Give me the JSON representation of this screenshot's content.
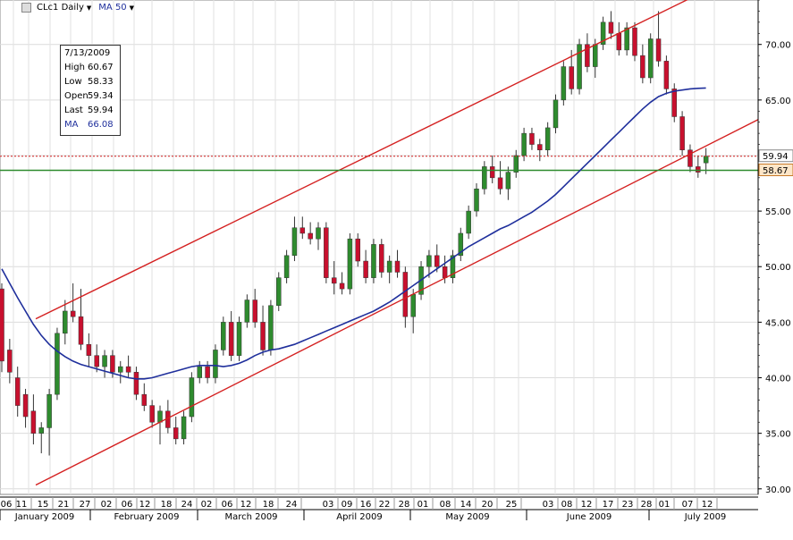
{
  "toolbar": {
    "symbol": "CLc1 Daily",
    "study": "MA 50"
  },
  "tooltip": {
    "date": "7/13/2009",
    "high_label": "High",
    "high": "60.67",
    "low_label": "Low",
    "low": "58.33",
    "open_label": "Open",
    "open": "59.34",
    "last_label": "Last",
    "last": "59.94",
    "ma_label": "MA",
    "ma": "66.08"
  },
  "colors": {
    "up": "#2e8b2e",
    "down": "#c8102e",
    "ma": "#1f2f9c",
    "channel": "#d42020",
    "support": "#2e8b2e",
    "last_line": "#d42020"
  },
  "price_labels": {
    "last": "59.94",
    "support": "58.67"
  },
  "chart_data": {
    "type": "candlestick",
    "title": "",
    "instrument": "CLc1",
    "interval": "Daily",
    "y_range": [
      29.5,
      74
    ],
    "y_ticks": [
      "30.00",
      "35.00",
      "40.00",
      "45.00",
      "50.00",
      "55.00",
      "60.00",
      "65.00",
      "70.00"
    ],
    "x_day_ticks": [
      "06",
      "11",
      "15",
      "21",
      "27",
      "02",
      "06",
      "12",
      "18",
      "24",
      "02",
      "06",
      "12",
      "18",
      "24",
      "03",
      "09",
      "16",
      "22",
      "28",
      "01",
      "08",
      "14",
      "20",
      "25",
      "03",
      "08",
      "12",
      "17",
      "23",
      "28",
      "01",
      "07",
      "12"
    ],
    "x_month_labels": [
      "January 2009",
      "February 2009",
      "March 2009",
      "April 2009",
      "May 2009",
      "June 2009",
      "July 2009"
    ],
    "moving_average": {
      "name": "MA 50",
      "values": [
        49.8,
        48.5,
        47.2,
        46.0,
        44.8,
        43.8,
        43.0,
        42.4,
        41.9,
        41.5,
        41.2,
        41.0,
        40.8,
        40.6,
        40.4,
        40.2,
        40.0,
        39.9,
        39.9,
        40.0,
        40.2,
        40.4,
        40.6,
        40.8,
        41.0,
        41.1,
        41.1,
        41.1,
        41.0,
        41.1,
        41.3,
        41.6,
        42.0,
        42.3,
        42.5,
        42.6,
        42.8,
        43.0,
        43.3,
        43.6,
        43.9,
        44.2,
        44.5,
        44.8,
        45.1,
        45.4,
        45.7,
        46.0,
        46.4,
        46.8,
        47.3,
        47.8,
        48.3,
        48.8,
        49.3,
        49.8,
        50.3,
        50.8,
        51.3,
        51.8,
        52.2,
        52.6,
        53.0,
        53.4,
        53.7,
        54.1,
        54.5,
        54.9,
        55.4,
        55.9,
        56.5,
        57.2,
        57.9,
        58.6,
        59.3,
        60.0,
        60.7,
        61.4,
        62.1,
        62.8,
        63.5,
        64.2,
        64.8,
        65.3,
        65.6,
        65.8,
        65.9,
        66.0,
        66.05,
        66.08
      ]
    },
    "channel": {
      "upper": [
        [
          0,
          43.8
        ],
        [
          88,
          74.5
        ]
      ],
      "lower": [
        [
          0,
          28.8
        ],
        [
          88,
          60.5
        ]
      ]
    },
    "support_level": 58.67,
    "last_level": 59.94,
    "candles": [
      {
        "o": 48.0,
        "h": 48.5,
        "l": 40.5,
        "c": 41.5
      },
      {
        "o": 42.5,
        "h": 43.5,
        "l": 39.5,
        "c": 40.5
      },
      {
        "o": 40.0,
        "h": 41.0,
        "l": 36.5,
        "c": 37.5
      },
      {
        "o": 38.5,
        "h": 39.0,
        "l": 35.5,
        "c": 36.5
      },
      {
        "o": 37.0,
        "h": 38.5,
        "l": 34.0,
        "c": 35.0
      },
      {
        "o": 35.0,
        "h": 36.0,
        "l": 33.2,
        "c": 35.5
      },
      {
        "o": 35.5,
        "h": 39.0,
        "l": 33.0,
        "c": 38.5
      },
      {
        "o": 38.5,
        "h": 44.5,
        "l": 38.0,
        "c": 44.0
      },
      {
        "o": 44.0,
        "h": 47.0,
        "l": 43.0,
        "c": 46.0
      },
      {
        "o": 46.0,
        "h": 48.5,
        "l": 45.0,
        "c": 45.5
      },
      {
        "o": 45.5,
        "h": 48.0,
        "l": 42.5,
        "c": 43.0
      },
      {
        "o": 43.0,
        "h": 44.0,
        "l": 41.0,
        "c": 42.0
      },
      {
        "o": 42.0,
        "h": 43.0,
        "l": 40.5,
        "c": 41.0
      },
      {
        "o": 41.0,
        "h": 42.5,
        "l": 40.0,
        "c": 42.0
      },
      {
        "o": 42.0,
        "h": 42.5,
        "l": 40.0,
        "c": 40.5
      },
      {
        "o": 40.5,
        "h": 41.5,
        "l": 39.5,
        "c": 41.0
      },
      {
        "o": 41.0,
        "h": 42.0,
        "l": 40.0,
        "c": 40.5
      },
      {
        "o": 40.5,
        "h": 41.0,
        "l": 38.0,
        "c": 38.5
      },
      {
        "o": 38.5,
        "h": 39.5,
        "l": 37.0,
        "c": 37.5
      },
      {
        "o": 37.5,
        "h": 38.0,
        "l": 35.5,
        "c": 36.0
      },
      {
        "o": 36.0,
        "h": 37.5,
        "l": 34.0,
        "c": 37.0
      },
      {
        "o": 37.0,
        "h": 38.0,
        "l": 35.0,
        "c": 35.5
      },
      {
        "o": 35.5,
        "h": 36.5,
        "l": 34.0,
        "c": 34.5
      },
      {
        "o": 34.5,
        "h": 37.0,
        "l": 34.0,
        "c": 36.5
      },
      {
        "o": 36.5,
        "h": 40.5,
        "l": 36.0,
        "c": 40.0
      },
      {
        "o": 40.0,
        "h": 41.5,
        "l": 39.5,
        "c": 41.0
      },
      {
        "o": 41.0,
        "h": 41.5,
        "l": 39.5,
        "c": 40.0
      },
      {
        "o": 40.0,
        "h": 43.0,
        "l": 39.5,
        "c": 42.5
      },
      {
        "o": 42.5,
        "h": 45.5,
        "l": 42.0,
        "c": 45.0
      },
      {
        "o": 45.0,
        "h": 46.0,
        "l": 41.5,
        "c": 42.0
      },
      {
        "o": 42.0,
        "h": 45.5,
        "l": 41.5,
        "c": 45.0
      },
      {
        "o": 45.0,
        "h": 47.5,
        "l": 44.5,
        "c": 47.0
      },
      {
        "o": 47.0,
        "h": 48.0,
        "l": 44.5,
        "c": 45.0
      },
      {
        "o": 45.0,
        "h": 46.5,
        "l": 42.0,
        "c": 42.5
      },
      {
        "o": 42.5,
        "h": 47.0,
        "l": 42.0,
        "c": 46.5
      },
      {
        "o": 46.5,
        "h": 49.5,
        "l": 46.0,
        "c": 49.0
      },
      {
        "o": 49.0,
        "h": 51.5,
        "l": 48.5,
        "c": 51.0
      },
      {
        "o": 51.0,
        "h": 54.5,
        "l": 50.5,
        "c": 53.5
      },
      {
        "o": 53.5,
        "h": 54.5,
        "l": 52.5,
        "c": 53.0
      },
      {
        "o": 53.0,
        "h": 54.0,
        "l": 52.0,
        "c": 52.5
      },
      {
        "o": 52.5,
        "h": 54.0,
        "l": 51.5,
        "c": 53.5
      },
      {
        "o": 53.5,
        "h": 54.0,
        "l": 48.5,
        "c": 49.0
      },
      {
        "o": 49.0,
        "h": 50.5,
        "l": 47.5,
        "c": 48.5
      },
      {
        "o": 48.5,
        "h": 49.5,
        "l": 47.5,
        "c": 48.0
      },
      {
        "o": 48.0,
        "h": 53.0,
        "l": 47.5,
        "c": 52.5
      },
      {
        "o": 52.5,
        "h": 53.0,
        "l": 50.0,
        "c": 50.5
      },
      {
        "o": 50.5,
        "h": 51.5,
        "l": 48.5,
        "c": 49.0
      },
      {
        "o": 49.0,
        "h": 52.5,
        "l": 48.5,
        "c": 52.0
      },
      {
        "o": 52.0,
        "h": 52.5,
        "l": 49.0,
        "c": 49.5
      },
      {
        "o": 49.5,
        "h": 51.0,
        "l": 48.5,
        "c": 50.5
      },
      {
        "o": 50.5,
        "h": 51.5,
        "l": 49.0,
        "c": 49.5
      },
      {
        "o": 49.5,
        "h": 50.0,
        "l": 44.5,
        "c": 45.5
      },
      {
        "o": 45.5,
        "h": 48.0,
        "l": 44.0,
        "c": 47.5
      },
      {
        "o": 47.5,
        "h": 50.5,
        "l": 47.0,
        "c": 50.0
      },
      {
        "o": 50.0,
        "h": 51.5,
        "l": 49.0,
        "c": 51.0
      },
      {
        "o": 51.0,
        "h": 52.0,
        "l": 49.5,
        "c": 50.0
      },
      {
        "o": 50.0,
        "h": 51.0,
        "l": 48.5,
        "c": 49.0
      },
      {
        "o": 49.0,
        "h": 51.5,
        "l": 48.5,
        "c": 51.0
      },
      {
        "o": 51.0,
        "h": 53.5,
        "l": 50.5,
        "c": 53.0
      },
      {
        "o": 53.0,
        "h": 55.5,
        "l": 52.5,
        "c": 55.0
      },
      {
        "o": 55.0,
        "h": 57.5,
        "l": 54.5,
        "c": 57.0
      },
      {
        "o": 57.0,
        "h": 59.5,
        "l": 56.5,
        "c": 59.0
      },
      {
        "o": 59.0,
        "h": 60.0,
        "l": 57.5,
        "c": 58.0
      },
      {
        "o": 58.0,
        "h": 59.5,
        "l": 56.5,
        "c": 57.0
      },
      {
        "o": 57.0,
        "h": 59.0,
        "l": 56.0,
        "c": 58.5
      },
      {
        "o": 58.5,
        "h": 60.5,
        "l": 58.0,
        "c": 60.0
      },
      {
        "o": 60.0,
        "h": 62.5,
        "l": 59.5,
        "c": 62.0
      },
      {
        "o": 62.0,
        "h": 62.5,
        "l": 60.5,
        "c": 61.0
      },
      {
        "o": 61.0,
        "h": 61.5,
        "l": 59.5,
        "c": 60.5
      },
      {
        "o": 60.5,
        "h": 63.0,
        "l": 60.0,
        "c": 62.5
      },
      {
        "o": 62.5,
        "h": 65.5,
        "l": 62.0,
        "c": 65.0
      },
      {
        "o": 65.0,
        "h": 68.5,
        "l": 64.5,
        "c": 68.0
      },
      {
        "o": 68.0,
        "h": 69.5,
        "l": 65.5,
        "c": 66.0
      },
      {
        "o": 66.0,
        "h": 70.5,
        "l": 65.5,
        "c": 70.0
      },
      {
        "o": 70.0,
        "h": 71.0,
        "l": 67.5,
        "c": 68.0
      },
      {
        "o": 68.0,
        "h": 70.5,
        "l": 67.0,
        "c": 70.0
      },
      {
        "o": 70.0,
        "h": 72.5,
        "l": 69.5,
        "c": 72.0
      },
      {
        "o": 72.0,
        "h": 73.0,
        "l": 70.5,
        "c": 71.0
      },
      {
        "o": 71.0,
        "h": 72.0,
        "l": 69.0,
        "c": 69.5
      },
      {
        "o": 69.5,
        "h": 72.0,
        "l": 69.0,
        "c": 71.5
      },
      {
        "o": 71.5,
        "h": 72.0,
        "l": 68.5,
        "c": 69.0
      },
      {
        "o": 69.0,
        "h": 70.0,
        "l": 66.5,
        "c": 67.0
      },
      {
        "o": 67.0,
        "h": 71.0,
        "l": 66.5,
        "c": 70.5
      },
      {
        "o": 70.5,
        "h": 73.0,
        "l": 68.0,
        "c": 68.5
      },
      {
        "o": 68.5,
        "h": 69.0,
        "l": 65.5,
        "c": 66.0
      },
      {
        "o": 66.0,
        "h": 66.5,
        "l": 63.0,
        "c": 63.5
      },
      {
        "o": 63.5,
        "h": 64.0,
        "l": 60.0,
        "c": 60.5
      },
      {
        "o": 60.5,
        "h": 61.0,
        "l": 58.5,
        "c": 59.0
      },
      {
        "o": 59.0,
        "h": 60.0,
        "l": 58.0,
        "c": 58.5
      },
      {
        "o": 59.34,
        "h": 60.67,
        "l": 58.33,
        "c": 59.94
      }
    ]
  }
}
